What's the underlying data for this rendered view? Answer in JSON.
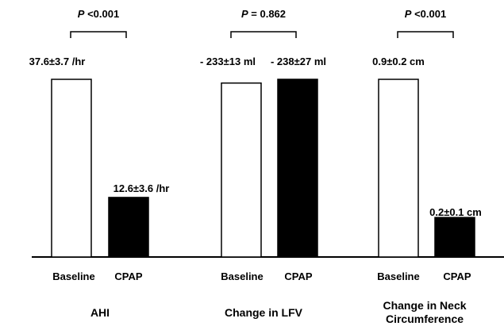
{
  "chart_data": {
    "type": "bar",
    "series_style": {
      "Baseline": {
        "fill": "#ffffff",
        "stroke": "#000000"
      },
      "CPAP": {
        "fill": "#000000",
        "stroke": "#000000"
      }
    },
    "groups": [
      {
        "title_lines": [
          "AHI"
        ],
        "p_prefix": "P",
        "p_rest": " <0.001",
        "bars": [
          {
            "label": "Baseline",
            "series": "Baseline",
            "value": 37.6,
            "data_label": "37.6±3.7 /hr"
          },
          {
            "label": "CPAP",
            "series": "CPAP",
            "value": 12.6,
            "data_label": "12.6±3.6 /hr"
          }
        ]
      },
      {
        "title_lines": [
          "Change in LFV"
        ],
        "p_prefix": "P",
        "p_rest": " = 0.862",
        "bars": [
          {
            "label": "Baseline",
            "series": "Baseline",
            "value": 233,
            "data_label": "- 233±13 ml"
          },
          {
            "label": "CPAP",
            "series": "CPAP",
            "value": 238,
            "data_label": "- 238±27 ml"
          }
        ]
      },
      {
        "title_lines": [
          "Change in Neck",
          "Circumference"
        ],
        "p_prefix": "P",
        "p_rest": " <0.001",
        "bars": [
          {
            "label": "Baseline",
            "series": "Baseline",
            "value": 0.9,
            "data_label": "0.9±0.2 cm"
          },
          {
            "label": "CPAP",
            "series": "CPAP",
            "value": 0.2,
            "data_label": "0.2±0.1 cm"
          }
        ]
      }
    ]
  }
}
